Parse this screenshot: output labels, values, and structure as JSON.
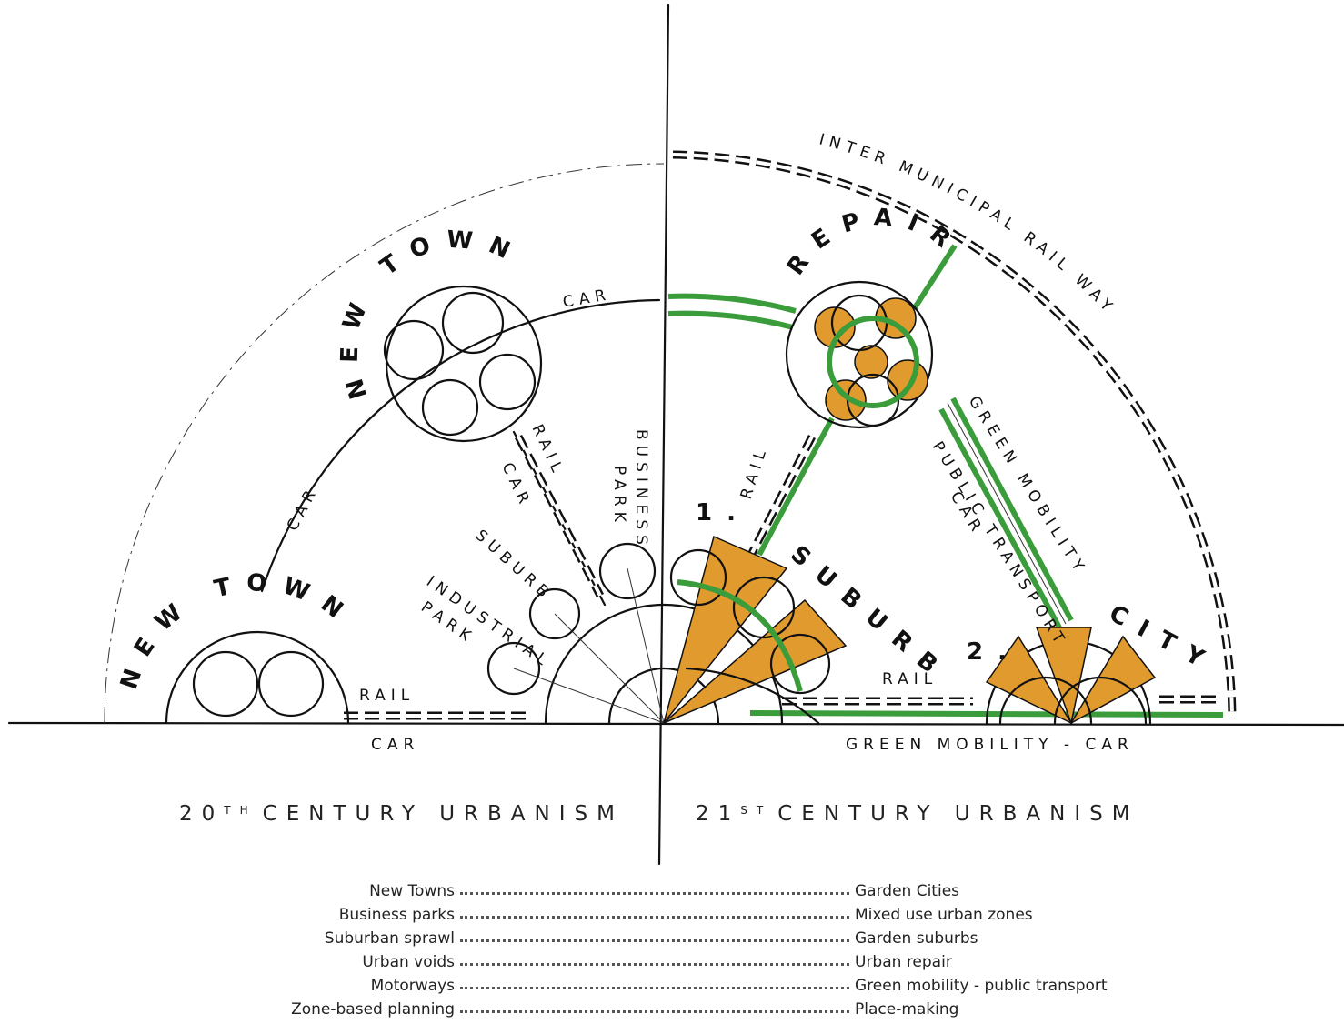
{
  "sketch": {
    "left": {
      "new_town_small": "NEW TOWN",
      "new_town_large": "NEW TOWN",
      "car_arc": "CAR",
      "car_top": "CAR",
      "rail_radial": "RAIL",
      "car_radial": "CAR",
      "business_park": [
        "BUSINESS",
        "PARK"
      ],
      "suburb": "SUBURB",
      "industrial_park": [
        "INDUSTRIAL",
        "PARK"
      ],
      "rail_base": "RAIL",
      "car_base": "CAR"
    },
    "right": {
      "inter_municipal_railway": "INTER MUNICIPAL RAIL WAY",
      "repair": "REPAIR",
      "rail_radial": "RAIL",
      "suburb_number": "1.",
      "suburb": "SUBURB",
      "green_mobility": "GREEN MOBILITY",
      "public_transport": "PUBLIC TRANSPORT",
      "car_radial": "CAR",
      "city_number": "2.",
      "city": "CITY",
      "rail_base": "RAIL",
      "base_line": "GREEN MOBILITY - CAR"
    }
  },
  "headings": [
    {
      "number": "20",
      "suffix": "TH",
      "text": "CENTURY URBANISM"
    },
    {
      "number": "21",
      "suffix": "ST",
      "text": "CENTURY URBANISM"
    }
  ],
  "comparison": [
    {
      "from": "New Towns",
      "to": "Garden Cities"
    },
    {
      "from": "Business parks",
      "to": "Mixed use urban zones"
    },
    {
      "from": "Suburban sprawl",
      "to": "Garden suburbs"
    },
    {
      "from": "Urban voids",
      "to": "Urban repair"
    },
    {
      "from": "Motorways",
      "to": "Green mobility - public transport"
    },
    {
      "from": "Zone-based planning",
      "to": "Place-making"
    }
  ]
}
